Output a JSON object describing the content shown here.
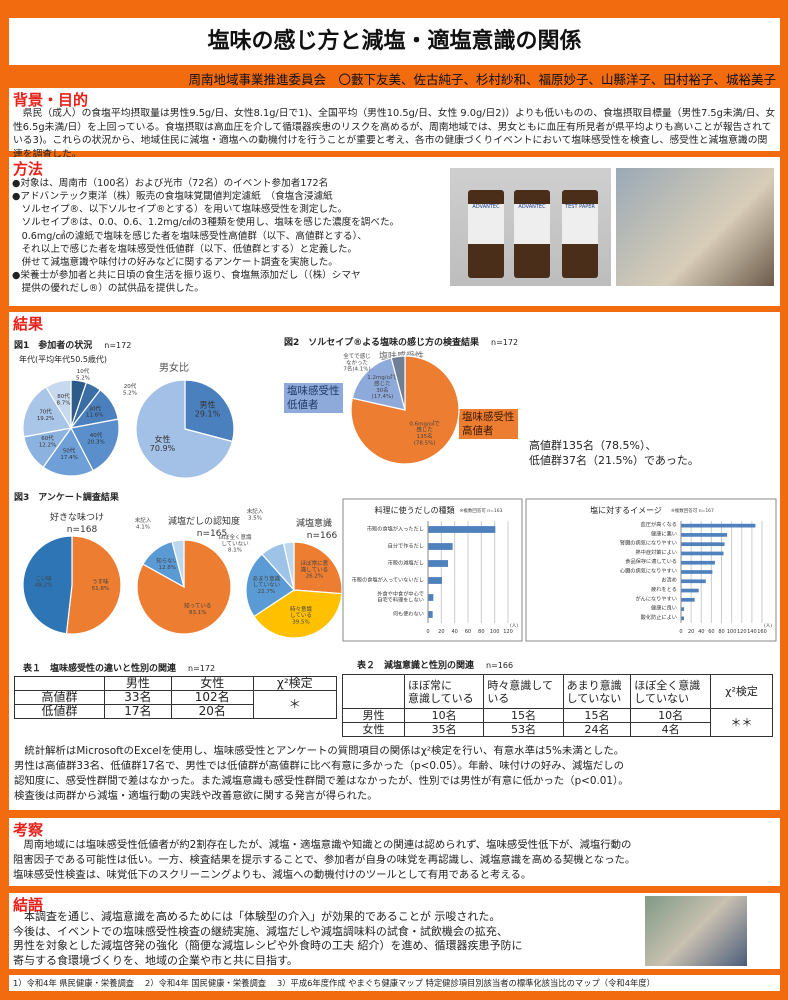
{
  "title": "塩味の感じ方と減塩・適塩意識の関係",
  "authors": "周南地域事業推進委員会　〇藪下友美、佐古純子、杉村紗和、福原妙子、山縣洋子、田村裕子、城裕美子",
  "background": {
    "heading": "背景・目的",
    "text": "　県民（成人）の食塩平均摂取量は男性9.5g/日、女性8.1g/日で1)、全国平均（男性10.5g/日、女性 9.0g/日2)）よりも低いものの、食塩摂取目標量（男性7.5g未満/日、女性6.5g未満/日）を上回っている。食塩摂取は高血圧を介して循環器疾患のリスクを高めるが、周南地域では、男女ともに血圧有所見者が県平均よりも高いことが報告されている3)。これらの状況から、地域住民に減塩・適塩への動機付けを行うことが重要と考え、各市の健康づくりイベントにおいて塩味感受性を検査し、感受性と減塩意識の関連を調査した。"
  },
  "methods": {
    "heading": "方法",
    "items": [
      "●対象は、周南市（100名）および光市（72名）のイベント参加者172名",
      "●アドバンテック東洋（株）販売の食塩味覚閾値判定濾紙　（食塩含浸濾紙\n　ソルセイプ®、以下ソルセイプ®とする）を用いて塩味感受性を測定した。\n　ソルセイプ®は、0.0、0.6、1.2mg/㎠の3種類を使用し、塩味を感じた濃度を調べた。\n　0.6mg/㎠の濾紙で塩味を感じた者を塩味感受性高値群（以下、高値群とする）、\n　それ以上で感じた者を塩味感受性低値群（以下、低値群とする）と定義した。\n　併せて減塩意識や味付けの好みなどに関するアンケート調査を実施した。",
      "●栄養士が参加者と共に日頃の食生活を振り返り、食塩無添加だし（（株）シマヤ\n　提供の優れだし®）の試供品を提供した。"
    ],
    "bottle_label_1": "TEST PAPER",
    "bottle_label_2": "ADVANTEC"
  },
  "results": {
    "heading": "結果",
    "fig1": {
      "caption": "図1　参加者の状況",
      "n": "n=172",
      "age_title": "年代(平均年代50.5歳代)",
      "sex_title": "男女比"
    },
    "fig2": {
      "caption": "図2　ソルセイプ®よる塩味の感じ方の検査結果",
      "n": "n=172",
      "title": "塩味感受性",
      "low_box": "塩味感受性\n低値者",
      "high_box": "塩味感受性\n高値者",
      "summary_1": "高値群135名（78.5%）、",
      "summary_2": "低値群37名（21.5%）であった。"
    },
    "fig3": {
      "caption": "図3　アンケート調査結果"
    },
    "table1": {
      "caption": "表１　塩味感受性の違いと性別の関連",
      "n": "n=172",
      "headers": [
        "",
        "男性",
        "女性",
        "χ²検定"
      ],
      "rows": [
        [
          "高値群",
          "33名",
          "102名"
        ],
        [
          "低値群",
          "17名",
          "20名"
        ]
      ],
      "sig": "＊"
    },
    "table2": {
      "caption": "表２　減塩意識と性別の関連",
      "n": "n=166",
      "headers": [
        "",
        "ほぼ常に\n意識している",
        "時々意識して\nいる",
        "あまり意識\nしていない",
        "ほぼ全く意識\nしていない",
        "χ²検定"
      ],
      "rows": [
        [
          "男性",
          "10名",
          "15名",
          "15名",
          "10名"
        ],
        [
          "女性",
          "35名",
          "53名",
          "24名",
          "4名"
        ]
      ],
      "sig": "＊＊"
    },
    "text": "　統計解析はMicrosoftのExcelを使用し、塩味感受性とアンケートの質問項目の関係はχ²検定を行い、有意水準は5%未満とした。\n男性は高値群33名、低値群17名で、男性では低値群が高値群に比べ有意に多かった（p<0.05）。年齢、味付けの好み、減塩だしの\n認知度に、感受性群間で差はなかった。また減塩意識も感受性群間で差はなかったが、性別では男性が有意に低かった（p<0.01）。\n検査後は両群から減塩・適塩行動の実践や改善意欲に関する発言が得られた。"
  },
  "discussion": {
    "heading": "考察",
    "text": "　周南地域には塩味感受性低値者が約2割存在したが、減塩・適塩意識や知識との関連は認められず、塩味感受性低下が、減塩行動の\n阻害因子である可能性は低い。一方、検査結果を提示することで、参加者が自身の味覚を再認識し、減塩意識を高める契機となった。\n塩味感受性検査は、味覚低下のスクリーニングよりも、減塩への動機付けのツールとして有用であると考える。"
  },
  "conclusion": {
    "heading": "結語",
    "text": "　本調査を通じ、減塩意識を高めるためには「体験型の介入」が効果的であることが 示唆された。\n今後は、イベントでの塩味感受性検査の継続実施、減塩だしや減塩調味料の試食・試飲機会の拡充、\n男性を対象とした減塩啓発の強化（簡便な減塩レシピや外食時の工夫 紹介）を進め、循環器疾患予防に\n寄与する食環境づくりを、地域の企業や市と共に目指す。"
  },
  "references": "1）令和4年 県民健康・栄養調査　 2）令和4年 国民健康・栄養調査　 3）平成6年度作成 やまぐち健康マップ 特定健診項目別該当者の標準化該当比のマップ（令和4年度）",
  "chart_data": [
    {
      "id": "age",
      "type": "pie",
      "title": "年代(平均年代50.5歳代)",
      "unit": "%",
      "slices": [
        {
          "label": "10代",
          "value": 5.2,
          "color": "#2e5c8a"
        },
        {
          "label": "20代",
          "value": 5.2,
          "color": "#3a6ea5"
        },
        {
          "label": "30代",
          "value": 11.6,
          "color": "#4a80bd"
        },
        {
          "label": "40代",
          "value": 20.3,
          "color": "#5a8fcb"
        },
        {
          "label": "50代",
          "value": 17.4,
          "color": "#6e9fd6"
        },
        {
          "label": "60代",
          "value": 12.2,
          "color": "#8cb3df"
        },
        {
          "label": "70代",
          "value": 19.2,
          "color": "#a9c5e7"
        },
        {
          "label": "80代",
          "value": 8.7,
          "color": "#c7d9ef"
        }
      ]
    },
    {
      "id": "sex",
      "type": "pie",
      "title": "男女比",
      "unit": "%",
      "slices": [
        {
          "label": "男性",
          "value": 29.1,
          "color": "#4a80bd"
        },
        {
          "label": "女性",
          "value": 70.9,
          "color": "#a3c1e6"
        }
      ]
    },
    {
      "id": "salt",
      "type": "pie",
      "title": "塩味感受性",
      "unit": "%",
      "slices": [
        {
          "label": "0.6mg/㎠で\n感じた\n135名\n(78.5%)",
          "value": 78.5,
          "color": "#ed7d31"
        },
        {
          "label": "1.2mg/㎠で\n感じた\n30名\n(17.4%)",
          "value": 17.4,
          "color": "#8eaadb"
        },
        {
          "label": "全てで感じ\nなかった\n7名(4.1%)",
          "value": 4.1,
          "color": "#6f7f95",
          "outside": true
        }
      ]
    },
    {
      "id": "taste",
      "type": "pie",
      "title": "好きな味つけ",
      "n": "n=168",
      "unit": "%",
      "slices": [
        {
          "label": "うす味\n51.8%",
          "value": 51.8,
          "color": "#ed7d31"
        },
        {
          "label": "こい味\n48.2%",
          "value": 48.2,
          "color": "#2e75b6"
        }
      ]
    },
    {
      "id": "dashi",
      "type": "pie",
      "title": "減塩だしの認知度",
      "n": "n=165",
      "unit": "%",
      "slices": [
        {
          "label": "知っている\n83.1%",
          "value": 83.1,
          "color": "#ed7d31"
        },
        {
          "label": "知らない\n12.8%",
          "value": 12.8,
          "color": "#5b9bd5"
        },
        {
          "label": "未記入\n4.1%",
          "value": 4.1,
          "color": "#bdd7ee",
          "outside": true
        }
      ]
    },
    {
      "id": "aware",
      "type": "pie",
      "title": "減塩意識",
      "n": "n=166",
      "unit": "%",
      "slices": [
        {
          "label": "ほぼ常に意\n識している\n26.2%",
          "value": 26.2,
          "color": "#ed7d31"
        },
        {
          "label": "時々意識\nしている\n39.5%",
          "value": 39.5,
          "color": "#ffc000"
        },
        {
          "label": "あまり意識\nしていない\n22.7%",
          "value": 22.7,
          "color": "#5b9bd5"
        },
        {
          "label": "ほぼ全く意識\nしていない\n8.1%",
          "value": 8.1,
          "color": "#9dc3e6",
          "outside": true
        },
        {
          "label": "未記入\n3.5%",
          "value": 3.5,
          "color": "#bdd7ee",
          "outside": true
        }
      ]
    },
    {
      "id": "dashitype",
      "type": "bar",
      "orientation": "horizontal",
      "title": "料理に使うだしの種類",
      "note": "※複数回答可",
      "n": "n=163",
      "xlabel": "(人)",
      "xlim": [
        0,
        120
      ],
      "xticks": [
        0,
        20,
        40,
        60,
        80,
        100,
        120
      ],
      "grid": true,
      "categories": [
        "市販の食塩が入っただし",
        "自分で作るだし",
        "市販の減塩だし",
        "市販の食塩が入っていないだし",
        "外食や中食が中心で\n自宅で料理をしない",
        "何も使わない"
      ],
      "values": [
        101,
        37,
        30,
        21,
        8,
        7
      ],
      "color": "#4f81bd"
    },
    {
      "id": "image",
      "type": "bar",
      "orientation": "horizontal",
      "title": "塩に対するイメージ",
      "note": "※複数回答可",
      "n": "n=167",
      "xlabel": "(人)",
      "xlim": [
        0,
        160
      ],
      "xticks": [
        0,
        20,
        40,
        60,
        80,
        100,
        120,
        140,
        160
      ],
      "grid": true,
      "categories": [
        "血圧が高くなる",
        "健康に悪い",
        "腎臓の病気になりやすい",
        "熱中症対策によい",
        "食品保存に適している",
        "心臓の病気になりやすい",
        "お清め",
        "疲れをとる",
        "がんになりやすい",
        "健康に良い",
        "酸化防止によい"
      ],
      "values": [
        147,
        91,
        86,
        84,
        67,
        62,
        49,
        35,
        27,
        6,
        6
      ],
      "color": "#4f81bd"
    }
  ]
}
